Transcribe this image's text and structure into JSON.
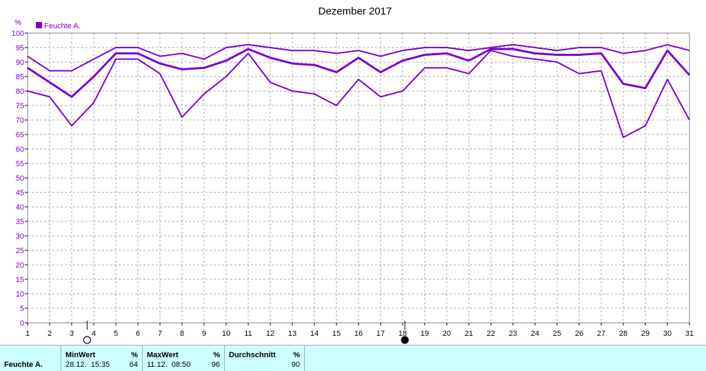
{
  "chart_data": {
    "type": "line",
    "title": "Dezember 2017",
    "ylabel": "%",
    "legend": [
      {
        "label": "Feuchte A.",
        "color": "#7a00cc"
      }
    ],
    "legend_position": "top-left",
    "ylim": [
      0,
      100
    ],
    "yticks": [
      0,
      5,
      10,
      15,
      20,
      25,
      30,
      35,
      40,
      45,
      50,
      55,
      60,
      65,
      70,
      75,
      80,
      85,
      90,
      95,
      100
    ],
    "x": [
      1,
      2,
      3,
      4,
      5,
      6,
      7,
      8,
      9,
      10,
      11,
      12,
      13,
      14,
      15,
      16,
      17,
      18,
      19,
      20,
      21,
      22,
      23,
      24,
      25,
      26,
      27,
      28,
      29,
      30,
      31
    ],
    "grid": true,
    "series": [
      {
        "role": "max",
        "width": 2,
        "values": [
          92,
          87,
          87,
          91,
          95,
          95,
          92,
          93,
          91,
          95,
          96,
          95,
          94,
          94,
          93,
          94,
          92,
          94,
          95,
          95,
          94,
          95,
          96,
          95,
          94,
          95,
          95,
          93,
          94,
          96,
          94
        ]
      },
      {
        "role": "mean",
        "width": 3,
        "values": [
          88,
          83,
          78,
          85,
          93,
          93,
          89.5,
          87.5,
          88,
          90.5,
          94.5,
          91.5,
          89.5,
          89,
          86.5,
          91.5,
          86.5,
          90.5,
          92.5,
          93,
          90.5,
          94.5,
          94.5,
          93,
          92.5,
          92.5,
          93,
          82.5,
          81,
          94,
          85.5
        ]
      },
      {
        "role": "min",
        "width": 2,
        "values": [
          80,
          78,
          68,
          76,
          91,
          91,
          86,
          71,
          79,
          85,
          93,
          83,
          80,
          79,
          75,
          84,
          78,
          80,
          88,
          88,
          86,
          94,
          92,
          91,
          90,
          86,
          87,
          64,
          68,
          84,
          70
        ]
      }
    ],
    "moon_phases": [
      {
        "day": 3.7,
        "phase": "full-moon"
      },
      {
        "day": 18.1,
        "phase": "new-moon"
      }
    ]
  },
  "stats": {
    "series_label": "Feuchte A.",
    "min": {
      "label": "MinWert",
      "unit": "%",
      "datetime": "28.12.  15:35",
      "value": "64"
    },
    "max": {
      "label": "MaxWert",
      "unit": "%",
      "datetime": "11.12.  08:50",
      "value": "96"
    },
    "avg": {
      "label": "Durchschnitt",
      "unit": "%",
      "value": "90"
    }
  }
}
